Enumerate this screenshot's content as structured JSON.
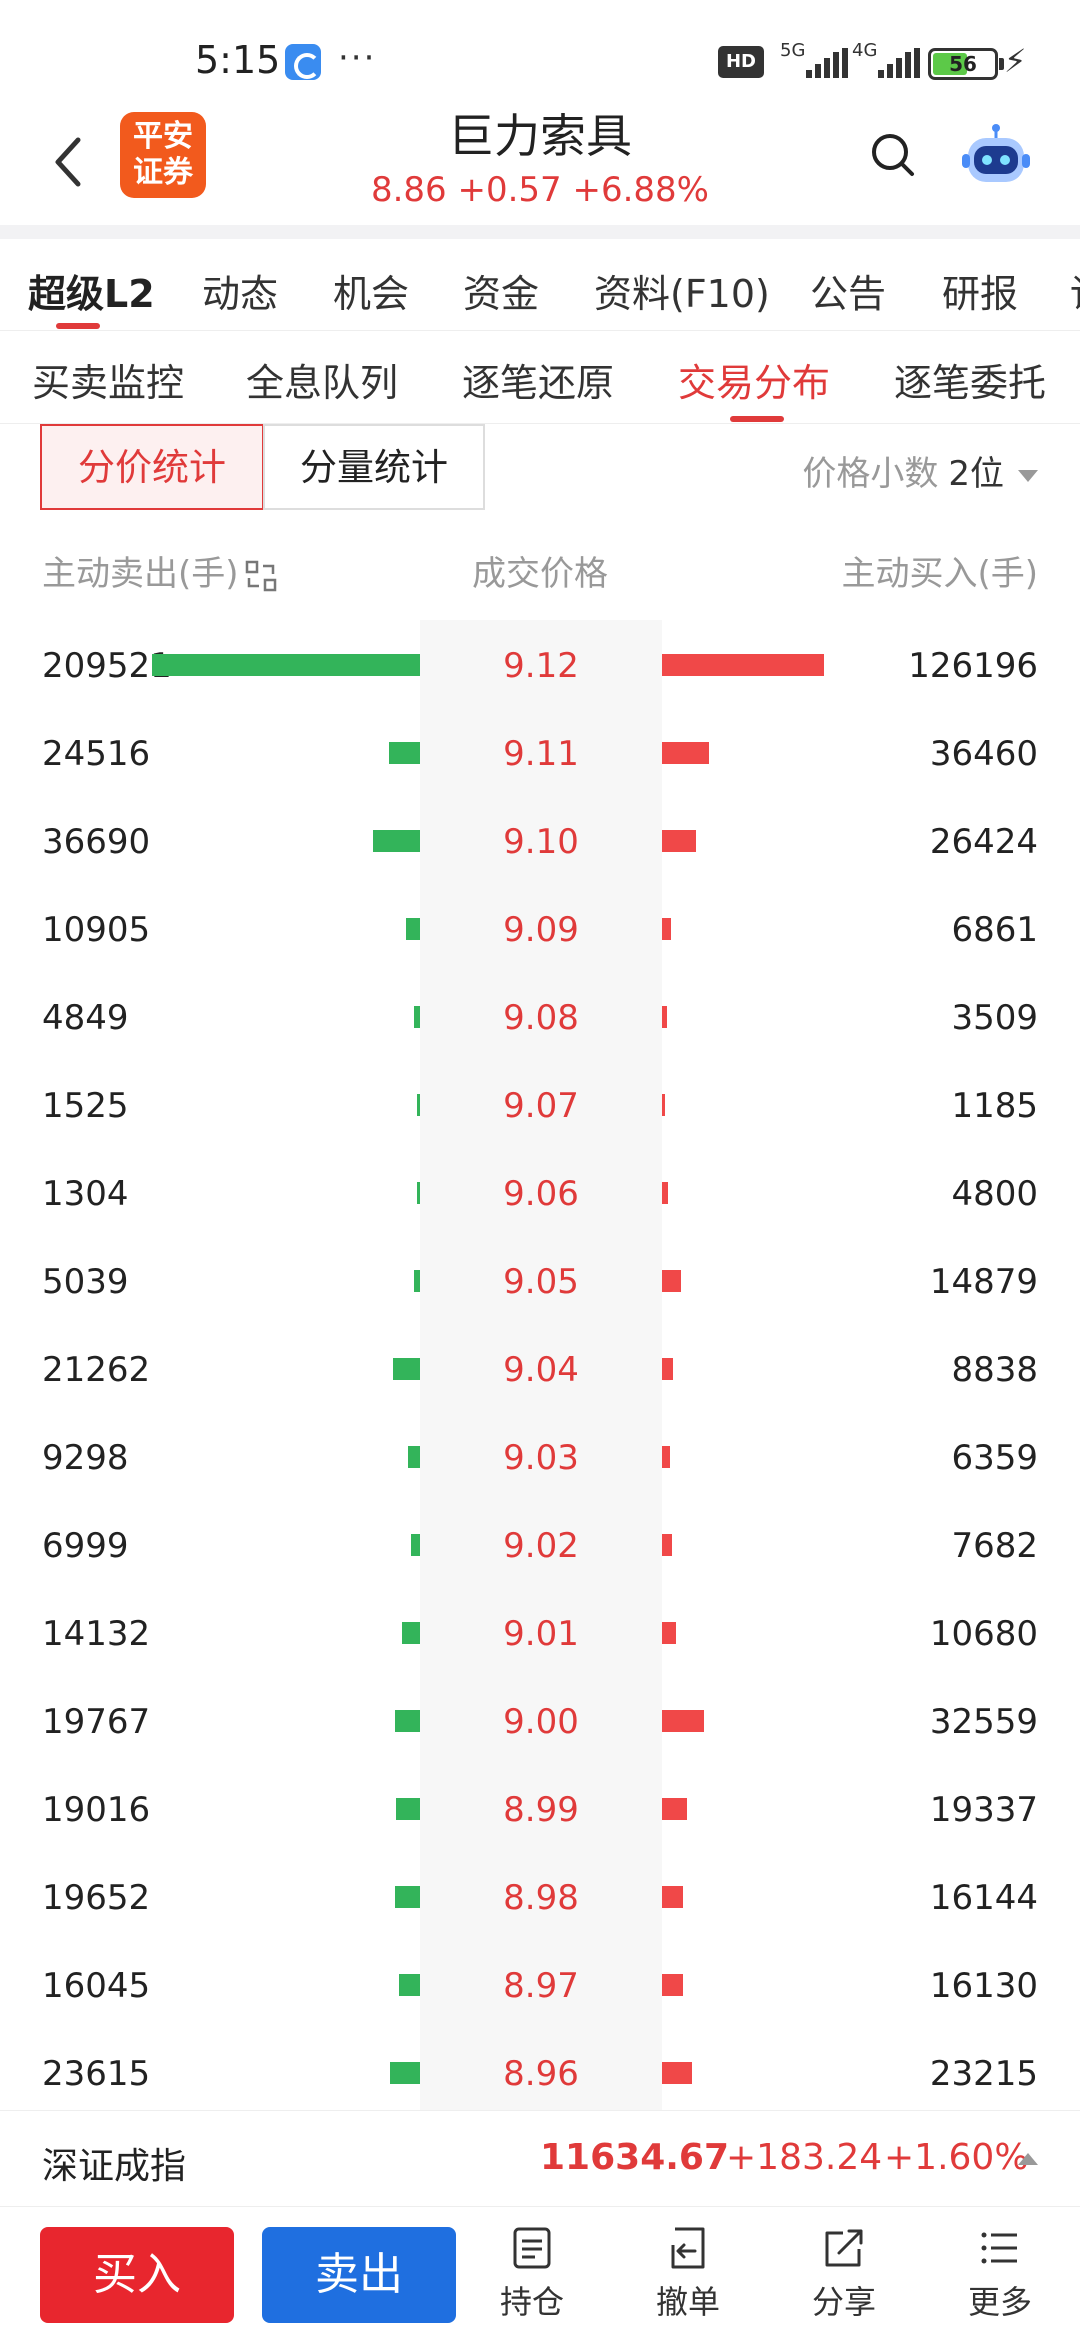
{
  "status_bar": {
    "time": "5:15",
    "more": "···",
    "hd": "HD",
    "network_1": "5G",
    "network_2": "4G",
    "battery": "56"
  },
  "header": {
    "logo_text": "平安证券",
    "stock_name": "巨力索具",
    "quote": "8.86  +0.57  +6.88%"
  },
  "main_tabs": [
    "超级L2",
    "动态",
    "机会",
    "资金",
    "资料(F10)",
    "公告",
    "研报",
    "讨"
  ],
  "sub_tabs": [
    "买卖监控",
    "全息队列",
    "逐笔还原",
    "交易分布",
    "逐笔委托"
  ],
  "segment": {
    "left": "分价统计",
    "right": "分量统计"
  },
  "decimals": {
    "label": "价格小数",
    "value": "2位"
  },
  "columns": {
    "sell": "主动卖出(手)",
    "price": "成交价格",
    "buy": "主动买入(手)"
  },
  "chart_data": {
    "type": "bar",
    "categories": [
      "9.12",
      "9.11",
      "9.10",
      "9.09",
      "9.08",
      "9.07",
      "9.06",
      "9.05",
      "9.04",
      "9.03",
      "9.02",
      "9.01",
      "9.00",
      "8.99",
      "8.98",
      "8.97",
      "8.96"
    ],
    "series": [
      {
        "name": "主动卖出(手)",
        "values": [
          209521,
          24516,
          36690,
          10905,
          4849,
          1525,
          1304,
          5039,
          21262,
          9298,
          6999,
          14132,
          19767,
          19016,
          19652,
          16045,
          23615
        ]
      },
      {
        "name": "主动买入(手)",
        "values": [
          126196,
          36460,
          26424,
          6861,
          3509,
          1185,
          4800,
          14879,
          8838,
          6359,
          7682,
          10680,
          32559,
          19337,
          16144,
          16130,
          23215
        ]
      }
    ],
    "colors": {
      "sell": "#33b45a",
      "buy": "#f04848",
      "price": "#e03a3a"
    }
  },
  "index": {
    "name": "深证成指",
    "value": "11634.67",
    "change": "+183.24",
    "pct": "+1.60%"
  },
  "bottom": {
    "buy": "买入",
    "sell": "卖出",
    "nav": [
      {
        "label": "持仓",
        "icon": "holdings-icon"
      },
      {
        "label": "撤单",
        "icon": "cancel-order-icon"
      },
      {
        "label": "分享",
        "icon": "share-icon"
      },
      {
        "label": "更多",
        "icon": "more-icon"
      }
    ]
  }
}
